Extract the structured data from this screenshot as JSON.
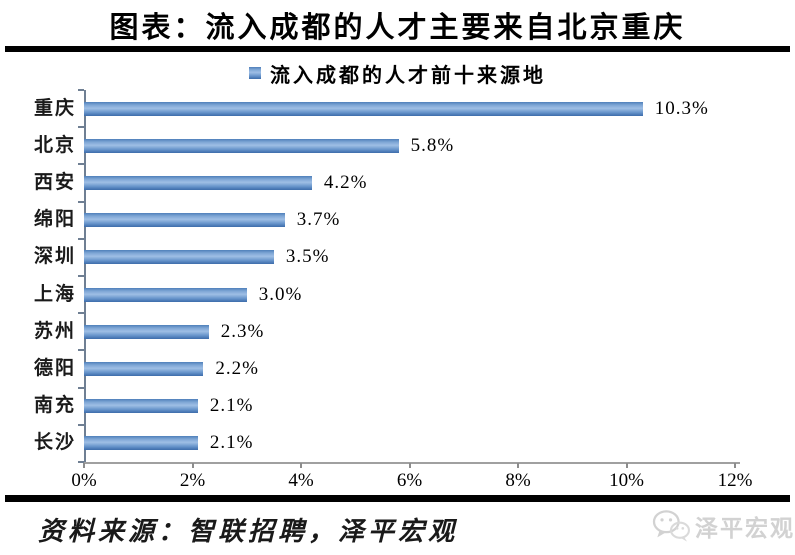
{
  "title": "图表：流入成都的人才主要来自北京重庆",
  "legend": {
    "label": "流入成都的人才前十来源地",
    "marker_color": "#4f81bd"
  },
  "chart_data": {
    "type": "bar",
    "orientation": "horizontal",
    "title": "流入成都的人才前十来源地",
    "categories": [
      "重庆",
      "北京",
      "西安",
      "绵阳",
      "深圳",
      "上海",
      "苏州",
      "德阳",
      "南充",
      "长沙"
    ],
    "values": [
      10.3,
      5.8,
      4.2,
      3.7,
      3.5,
      3.0,
      2.3,
      2.2,
      2.1,
      2.1
    ],
    "value_labels": [
      "10.3%",
      "5.8%",
      "4.2%",
      "3.7%",
      "3.5%",
      "3.0%",
      "2.3%",
      "2.2%",
      "2.1%",
      "2.1%"
    ],
    "xlabel": "",
    "ylabel": "",
    "xlim": [
      0,
      12
    ],
    "x_ticks": [
      "0%",
      "2%",
      "4%",
      "6%",
      "8%",
      "10%",
      "12%"
    ],
    "grid": false,
    "legend_position": "top",
    "bar_color": "#4f81bd"
  },
  "source": "资料来源：智联招聘，泽平宏观",
  "watermark": {
    "label": "泽平宏观",
    "icon": "wechat-icon"
  },
  "colors": {
    "bar": "#4f81bd",
    "axis": "#8c8c8c",
    "rule": "#000000",
    "watermark": "#d2d2d2"
  }
}
